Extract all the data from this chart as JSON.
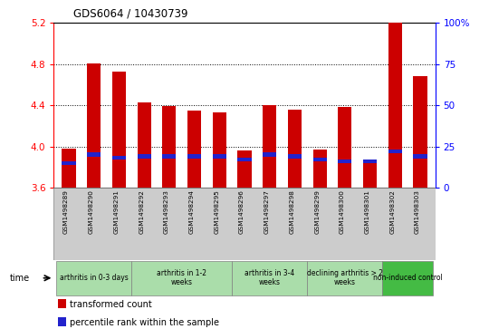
{
  "title": "GDS6064 / 10430739",
  "samples": [
    "GSM1498289",
    "GSM1498290",
    "GSM1498291",
    "GSM1498292",
    "GSM1498293",
    "GSM1498294",
    "GSM1498295",
    "GSM1498296",
    "GSM1498297",
    "GSM1498298",
    "GSM1498299",
    "GSM1498300",
    "GSM1498301",
    "GSM1498302",
    "GSM1498303"
  ],
  "transformed_count": [
    3.98,
    4.81,
    4.73,
    4.43,
    4.39,
    4.35,
    4.33,
    3.96,
    4.4,
    4.36,
    3.97,
    4.38,
    3.85,
    5.2,
    4.68
  ],
  "percentile_rank": [
    15,
    20,
    18,
    19,
    19,
    19,
    19,
    17,
    20,
    19,
    17,
    16,
    16,
    22,
    19
  ],
  "ylim": [
    3.6,
    5.2
  ],
  "yticks_left": [
    3.6,
    4.0,
    4.4,
    4.8,
    5.2
  ],
  "yticks_right": [
    0,
    25,
    50,
    75,
    100
  ],
  "bar_color": "#cc0000",
  "percentile_color": "#2222cc",
  "groups": [
    {
      "label": "arthritis in 0-3 days",
      "indices": [
        0,
        1,
        2
      ],
      "color": "#aaddaa"
    },
    {
      "label": "arthritis in 1-2\nweeks",
      "indices": [
        3,
        4,
        5,
        6
      ],
      "color": "#aaddaa"
    },
    {
      "label": "arthritis in 3-4\nweeks",
      "indices": [
        7,
        8,
        9
      ],
      "color": "#aaddaa"
    },
    {
      "label": "declining arthritis > 2\nweeks",
      "indices": [
        10,
        11,
        12
      ],
      "color": "#aaddaa"
    },
    {
      "label": "non-induced control",
      "indices": [
        13,
        14
      ],
      "color": "#44bb44"
    }
  ],
  "legend_labels": [
    "transformed count",
    "percentile rank within the sample"
  ],
  "time_label": "time",
  "sample_bg_color": "#cccccc",
  "plot_bg": "#ffffff",
  "grid_lines": [
    4.0,
    4.4,
    4.8
  ],
  "bar_width": 0.55
}
